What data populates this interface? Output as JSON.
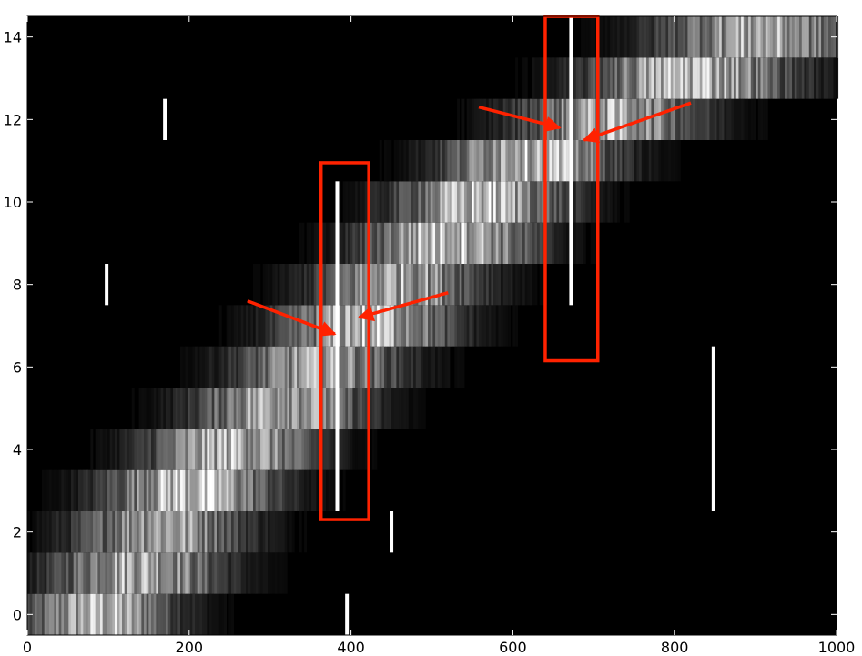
{
  "chart_data": {
    "type": "heatmap",
    "title": "",
    "xlabel": "",
    "ylabel": "",
    "xlim": [
      0,
      1000
    ],
    "ylim": [
      -0.5,
      14.5
    ],
    "x_ticks": [
      0,
      200,
      400,
      600,
      800,
      1000
    ],
    "y_ticks": [
      0,
      2,
      4,
      6,
      8,
      10,
      12,
      14
    ],
    "x_tick_labels": [
      "0",
      "200",
      "400",
      "600",
      "800",
      "1000"
    ],
    "y_tick_labels": [
      "0",
      "2",
      "4",
      "6",
      "8",
      "10",
      "12",
      "14"
    ],
    "grid": false,
    "colormap": "grayscale",
    "rows": [
      {
        "row": 0,
        "band_center": 90,
        "band_width": 90,
        "intensity": 0.85
      },
      {
        "row": 1,
        "band_center": 135,
        "band_width": 100,
        "intensity": 0.85
      },
      {
        "row": 2,
        "band_center": 165,
        "band_width": 100,
        "intensity": 0.8
      },
      {
        "row": 3,
        "band_center": 200,
        "band_width": 100,
        "intensity": 0.95
      },
      {
        "row": 4,
        "band_center": 250,
        "band_width": 100,
        "intensity": 0.85
      },
      {
        "row": 5,
        "band_center": 310,
        "band_width": 100,
        "intensity": 0.85
      },
      {
        "row": 6,
        "band_center": 360,
        "band_width": 100,
        "intensity": 0.75
      },
      {
        "row": 7,
        "band_center": 420,
        "band_width": 100,
        "intensity": 0.9
      },
      {
        "row": 8,
        "band_center": 460,
        "band_width": 100,
        "intensity": 0.8
      },
      {
        "row": 9,
        "band_center": 520,
        "band_width": 100,
        "intensity": 0.95
      },
      {
        "row": 10,
        "band_center": 560,
        "band_width": 100,
        "intensity": 0.9
      },
      {
        "row": 11,
        "band_center": 620,
        "band_width": 100,
        "intensity": 0.95
      },
      {
        "row": 12,
        "band_center": 720,
        "band_width": 110,
        "intensity": 0.8
      },
      {
        "row": 13,
        "band_center": 820,
        "band_width": 120,
        "intensity": 0.9
      },
      {
        "row": 14,
        "band_center": 900,
        "band_width": 120,
        "intensity": 0.8
      }
    ],
    "vertical_lines": [
      {
        "x": 383,
        "y0": 2.5,
        "y1": 10.5,
        "intensity": 1.0
      },
      {
        "x": 672,
        "y0": 7.5,
        "y1": 14.5,
        "intensity": 1.0
      },
      {
        "x": 395,
        "y0": -0.5,
        "y1": 0.5,
        "intensity": 1.0
      },
      {
        "x": 170,
        "y0": 11.5,
        "y1": 12.5,
        "intensity": 1.0
      },
      {
        "x": 98,
        "y0": 7.5,
        "y1": 8.5,
        "intensity": 1.0
      },
      {
        "x": 450,
        "y0": 1.5,
        "y1": 2.5,
        "intensity": 1.0
      },
      {
        "x": 848,
        "y0": 2.5,
        "y1": 6.5,
        "intensity": 1.0
      }
    ],
    "annotations": [
      {
        "type": "rectangle",
        "x0": 363,
        "x1": 422,
        "y0": 2.3,
        "y1": 10.95,
        "color": "#ff2200"
      },
      {
        "type": "rectangle",
        "x0": 640,
        "x1": 705,
        "y0": 6.15,
        "y1": 14.5,
        "color": "#ff2200"
      },
      {
        "type": "arrow",
        "from": [
          272,
          7.6
        ],
        "to": [
          380,
          6.8
        ],
        "color": "#ff2200"
      },
      {
        "type": "arrow",
        "from": [
          520,
          7.8
        ],
        "to": [
          410,
          7.2
        ],
        "color": "#ff2200"
      },
      {
        "type": "arrow",
        "from": [
          558,
          12.3
        ],
        "to": [
          658,
          11.8
        ],
        "color": "#ff2200"
      },
      {
        "type": "arrow",
        "from": [
          820,
          12.4
        ],
        "to": [
          688,
          11.5
        ],
        "color": "#ff2200"
      }
    ]
  }
}
